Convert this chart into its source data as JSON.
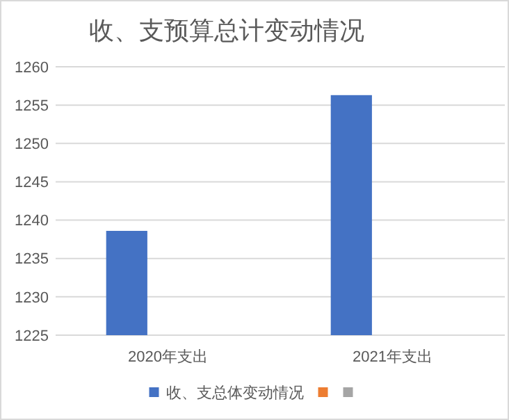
{
  "chart_data": {
    "type": "bar",
    "title": "收、支预算总计变动情况",
    "categories": [
      "2020年支出",
      "2021年支出"
    ],
    "series": [
      {
        "name": "收、支总体变动情况",
        "color": "#4472c4",
        "values": [
          1238.6,
          1256.3
        ]
      },
      {
        "color": "#ed7d31",
        "values": [
          null,
          null
        ]
      },
      {
        "color": "#a5a5a5",
        "values": [
          null,
          null
        ]
      }
    ],
    "ylim": [
      1225,
      1260
    ],
    "yticks": [
      1225,
      1230,
      1235,
      1240,
      1245,
      1250,
      1255,
      1260
    ],
    "grid": "y",
    "legend": "bottom"
  }
}
